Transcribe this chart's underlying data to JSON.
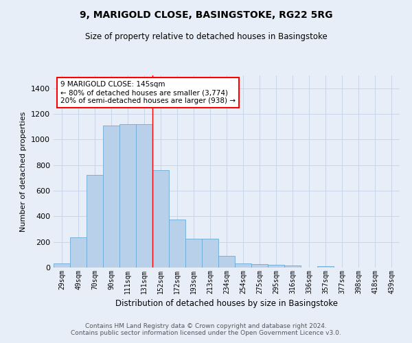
{
  "title": "9, MARIGOLD CLOSE, BASINGSTOKE, RG22 5RG",
  "subtitle": "Size of property relative to detached houses in Basingstoke",
  "xlabel": "Distribution of detached houses by size in Basingstoke",
  "ylabel": "Number of detached properties",
  "categories": [
    "29sqm",
    "49sqm",
    "70sqm",
    "90sqm",
    "111sqm",
    "131sqm",
    "152sqm",
    "172sqm",
    "193sqm",
    "213sqm",
    "234sqm",
    "254sqm",
    "275sqm",
    "295sqm",
    "316sqm",
    "336sqm",
    "357sqm",
    "377sqm",
    "398sqm",
    "418sqm",
    "439sqm"
  ],
  "values": [
    30,
    235,
    725,
    1110,
    1120,
    1120,
    760,
    375,
    225,
    225,
    90,
    30,
    25,
    20,
    15,
    0,
    10,
    0,
    0,
    0,
    0
  ],
  "bar_color": "#b8d0ea",
  "bar_edge_color": "#6aaad4",
  "grid_color": "#c8d4e8",
  "background_color": "#e8eef8",
  "vline_x": 5.5,
  "vline_color": "red",
  "annotation_text": "9 MARIGOLD CLOSE: 145sqm\n← 80% of detached houses are smaller (3,774)\n20% of semi-detached houses are larger (938) →",
  "annotation_box_color": "white",
  "annotation_box_edgecolor": "red",
  "footer": "Contains HM Land Registry data © Crown copyright and database right 2024.\nContains public sector information licensed under the Open Government Licence v3.0.",
  "ylim": [
    0,
    1500
  ],
  "yticks": [
    0,
    200,
    400,
    600,
    800,
    1000,
    1200,
    1400
  ],
  "figsize": [
    6.0,
    5.0
  ],
  "dpi": 100
}
